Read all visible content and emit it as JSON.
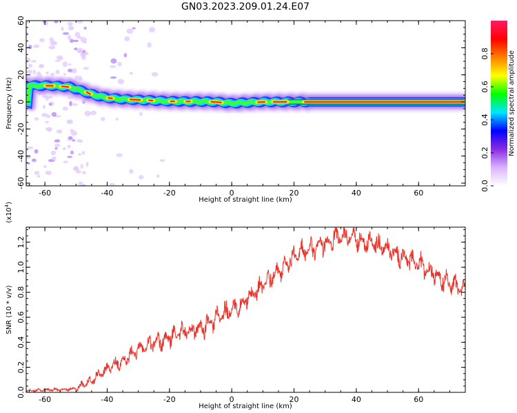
{
  "figure": {
    "title": "GN03.2023.209.01.24.E07"
  },
  "chart_data": [
    {
      "type": "heatmap",
      "title": "",
      "xlabel": "Height of straight line (km)",
      "ylabel": "Frequency (Hz)",
      "xlim": [
        -66,
        75
      ],
      "ylim": [
        -62,
        60
      ],
      "x_ticks": [
        -60,
        -40,
        -20,
        0,
        20,
        40,
        60
      ],
      "y_ticks": [
        -60,
        -40,
        -20,
        0,
        20,
        40,
        60
      ],
      "colorbar": {
        "label": "Normalized spectral amplitude",
        "range": [
          0,
          1
        ],
        "ticks": [
          0.0,
          0.2,
          0.4,
          0.6,
          0.8
        ],
        "colormap": [
          "#ffffff",
          "#d9b3ff",
          "#8a2be2",
          "#0000ff",
          "#00e5ff",
          "#00ff00",
          "#ffff00",
          "#ff8000",
          "#ff0000",
          "#ff1a66"
        ]
      },
      "ridge": {
        "x": [
          -65,
          -58,
          -52,
          -48,
          -44,
          -40,
          -35,
          -30,
          -25,
          -20,
          -15,
          -10,
          -5,
          0,
          5,
          10,
          15,
          20,
          25,
          30,
          40,
          50,
          60,
          75
        ],
        "y": [
          12,
          12,
          11,
          8,
          5,
          3,
          2,
          1.5,
          1,
          0.5,
          0.3,
          0.3,
          0,
          -1,
          -0.5,
          0,
          0,
          0,
          0,
          0,
          0,
          0,
          0,
          0
        ]
      }
    },
    {
      "type": "line",
      "title": "",
      "xlabel": "Height of straight line (km)",
      "ylabel": "SNR (10 * v/v)",
      "y_multiplier_label": "(x10",
      "y_multiplier_exp": "4",
      "y_multiplier_close": ")",
      "xlim": [
        -66,
        75
      ],
      "ylim": [
        0,
        1.32
      ],
      "x_ticks": [
        -60,
        -40,
        -20,
        0,
        20,
        40,
        60
      ],
      "y_ticks": [
        0.0,
        0.2,
        0.4,
        0.6,
        0.8,
        1.0,
        1.2
      ],
      "line_color": "#e8322a",
      "series": [
        {
          "x": [
            -66,
            -60,
            -55,
            -50,
            -45,
            -40,
            -35,
            -30,
            -25,
            -20,
            -15,
            -10,
            -5,
            0,
            5,
            10,
            15,
            20,
            25,
            30,
            35,
            40,
            45,
            50,
            55,
            60,
            65,
            70,
            75
          ],
          "values": [
            0.01,
            0.02,
            0.02,
            0.03,
            0.1,
            0.18,
            0.26,
            0.34,
            0.4,
            0.44,
            0.48,
            0.52,
            0.58,
            0.66,
            0.74,
            0.85,
            0.98,
            1.08,
            1.15,
            1.2,
            1.24,
            1.23,
            1.19,
            1.14,
            1.09,
            1.02,
            0.95,
            0.87,
            0.78
          ]
        }
      ]
    }
  ]
}
